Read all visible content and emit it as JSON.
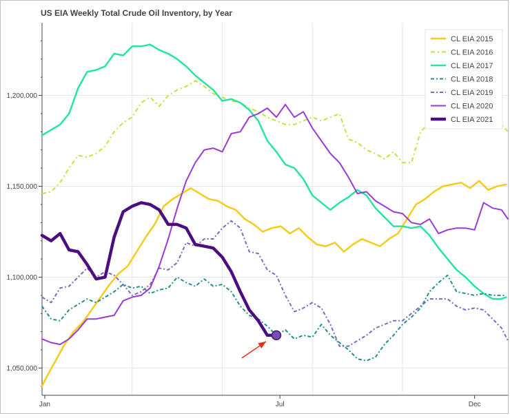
{
  "chart_data": {
    "type": "line",
    "title": "US EIA Weekly Total Crude Oil Inventory, by Year",
    "xlabel": "",
    "ylabel": "",
    "x_domain": [
      1,
      52.7
    ],
    "ylim": [
      1035000,
      1240000
    ],
    "y_ticks": [
      1050000,
      1100000,
      1150000,
      1200000
    ],
    "y_tick_labels": [
      "1,050,000",
      "1,100,000",
      "1,150,000",
      "1,200,000"
    ],
    "x_ticks": [
      1.3,
      27.4,
      49.0
    ],
    "x_tick_labels": [
      "Jan",
      "Jul",
      "Dec"
    ],
    "x_gridlines": [
      11,
      21,
      31,
      41
    ],
    "grid": true,
    "legend_position": "top-right",
    "annotation": {
      "type": "arrow",
      "target_series": "CL EIA 2021",
      "week": 27,
      "value": 1068000,
      "color": "#e62e1e"
    },
    "series": [
      {
        "name": "CL EIA 2015",
        "color": "#f5cc1b",
        "dash": "solid",
        "width": 2.5,
        "x": [
          1,
          1.5,
          2.5,
          3.5,
          4.5,
          5.5,
          6.5,
          7.5,
          8.5,
          9.5,
          10.5,
          11.5,
          12.5,
          13.5,
          14.5,
          15.5,
          16.5,
          17.5,
          18.5,
          19.5,
          20.5,
          21.5,
          22.5,
          23.5,
          24.5,
          25.5,
          26.5,
          27.5,
          28.5,
          29.5,
          30.5,
          31.5,
          32.5,
          33.5,
          34.5,
          35.5,
          36.5,
          37.5,
          38.5,
          39.5,
          40.5,
          41.5,
          42.5,
          43.5,
          44.5,
          45.5,
          46.5,
          47.5,
          48.5,
          49.5,
          50.5,
          51.5,
          52.5
        ],
        "y": [
          1040000,
          1045000,
          1054000,
          1063000,
          1070000,
          1075000,
          1082000,
          1089000,
          1096000,
          1102000,
          1106000,
          1114000,
          1122000,
          1129000,
          1139000,
          1143000,
          1146000,
          1149000,
          1146000,
          1143000,
          1142000,
          1139000,
          1137000,
          1132000,
          1129000,
          1125000,
          1127000,
          1128000,
          1124000,
          1127000,
          1122000,
          1118000,
          1117000,
          1119000,
          1114000,
          1118000,
          1121000,
          1119000,
          1117000,
          1121000,
          1124000,
          1132000,
          1140000,
          1143000,
          1147000,
          1150000,
          1151000,
          1152000,
          1149000,
          1153000,
          1148000,
          1150000,
          1151000
        ]
      },
      {
        "name": "CL EIA 2016",
        "color": "#b8e83c",
        "dash": "6,4,2,4",
        "width": 2,
        "x": [
          1,
          2,
          3,
          4,
          5,
          6,
          7,
          8,
          9,
          10,
          11,
          12,
          13,
          14,
          15,
          16,
          17,
          18,
          19,
          20,
          21,
          22,
          23,
          24,
          25,
          26,
          27,
          28,
          29,
          30,
          31,
          32,
          33,
          34,
          35,
          36,
          37,
          38,
          39,
          40,
          41,
          42,
          43,
          44,
          45,
          46,
          47,
          48,
          49,
          50,
          51,
          52,
          52.7
        ],
        "y": [
          1146000,
          1147000,
          1152000,
          1160000,
          1167000,
          1166000,
          1168000,
          1172000,
          1180000,
          1185000,
          1188000,
          1196000,
          1199000,
          1194000,
          1200000,
          1203000,
          1205000,
          1208000,
          1205000,
          1201000,
          1199000,
          1197000,
          1196000,
          1193000,
          1191000,
          1188000,
          1186000,
          1184000,
          1184000,
          1186000,
          1188000,
          1186000,
          1188000,
          1190000,
          1176000,
          1174000,
          1170000,
          1168000,
          1165000,
          1169000,
          1163000,
          1163000,
          1180000,
          1185000,
          1190000,
          1188000,
          1186000,
          1184000,
          1186000,
          1188000,
          1183000,
          1184000,
          1180000
        ]
      },
      {
        "name": "CL EIA 2017",
        "color": "#25e59f",
        "dash": "solid",
        "width": 2.5,
        "x": [
          1,
          2,
          3,
          4,
          5,
          6,
          7,
          8,
          9,
          10,
          11,
          12,
          13,
          14,
          15,
          16,
          17,
          18,
          19,
          20,
          21,
          22,
          23,
          24,
          25,
          26,
          27,
          28,
          29,
          30,
          31,
          32,
          33,
          34,
          35,
          36,
          37,
          38,
          39,
          40,
          41,
          42,
          43,
          44,
          45,
          46,
          47,
          48,
          49,
          50,
          51,
          52,
          52.5
        ],
        "y": [
          1178000,
          1181000,
          1184000,
          1190000,
          1204000,
          1213000,
          1214000,
          1216000,
          1223000,
          1222000,
          1227000,
          1227000,
          1228000,
          1225000,
          1223000,
          1220000,
          1216000,
          1211000,
          1207000,
          1203000,
          1197000,
          1198000,
          1196000,
          1192000,
          1186000,
          1175000,
          1169000,
          1162000,
          1160000,
          1154000,
          1145000,
          1141000,
          1137000,
          1141000,
          1144000,
          1148000,
          1145000,
          1138000,
          1133000,
          1128000,
          1128000,
          1127000,
          1128000,
          1123000,
          1116000,
          1110000,
          1104000,
          1100000,
          1095000,
          1091000,
          1088000,
          1088000,
          1089000
        ]
      },
      {
        "name": "CL EIA 2018",
        "color": "#1f8e8c",
        "dash": "5,3,2,3",
        "width": 2,
        "x": [
          1,
          2,
          3,
          4,
          5,
          6,
          7,
          8,
          9,
          10,
          11,
          12,
          13,
          14,
          15,
          16,
          17,
          18,
          19,
          20,
          21,
          22,
          23,
          24,
          25,
          26,
          27,
          28,
          29,
          30,
          31,
          32,
          33,
          34,
          35,
          36,
          37,
          38,
          39,
          40,
          41,
          42,
          43,
          44,
          45,
          46,
          47,
          48,
          49,
          50,
          51,
          52,
          52.5
        ],
        "y": [
          1084000,
          1077000,
          1076000,
          1082000,
          1085000,
          1088000,
          1086000,
          1089000,
          1092000,
          1096000,
          1094000,
          1095000,
          1091000,
          1093000,
          1094000,
          1100000,
          1097000,
          1095000,
          1099000,
          1095000,
          1096000,
          1092000,
          1084000,
          1079000,
          1077000,
          1073000,
          1068000,
          1071000,
          1066000,
          1068000,
          1067000,
          1074000,
          1068000,
          1064000,
          1060000,
          1055000,
          1054000,
          1056000,
          1063000,
          1068000,
          1074000,
          1078000,
          1083000,
          1092000,
          1097000,
          1101000,
          1092000,
          1091000,
          1090000,
          1091000,
          1090000,
          1090000,
          1090000
        ]
      },
      {
        "name": "CL EIA 2019",
        "color": "#7a68c3",
        "dash": "5,3,2,3",
        "width": 2,
        "x": [
          1,
          2,
          3,
          4,
          5,
          6,
          7,
          8,
          9,
          10,
          11,
          12,
          13,
          14,
          15,
          16,
          17,
          18,
          19,
          20,
          21,
          22,
          23,
          24,
          25,
          26,
          27,
          28,
          29,
          30,
          31,
          32,
          33,
          34,
          35,
          36,
          37,
          38,
          39,
          40,
          41,
          42,
          43,
          44,
          45,
          46,
          47,
          48,
          49,
          50,
          51,
          52,
          52.7
        ],
        "y": [
          1089000,
          1086000,
          1094000,
          1095000,
          1100000,
          1105000,
          1100000,
          1103000,
          1101000,
          1096000,
          1090000,
          1092000,
          1096000,
          1105000,
          1104000,
          1108000,
          1119000,
          1117000,
          1121000,
          1121000,
          1127000,
          1131000,
          1127000,
          1114000,
          1113000,
          1104000,
          1101000,
          1090000,
          1081000,
          1083000,
          1086000,
          1083000,
          1074000,
          1062000,
          1062000,
          1065000,
          1068000,
          1072000,
          1074000,
          1076000,
          1076000,
          1080000,
          1084000,
          1088000,
          1088000,
          1088000,
          1084000,
          1082000,
          1083000,
          1082000,
          1077000,
          1072000,
          1065000
        ]
      },
      {
        "name": "CL EIA 2020",
        "color": "#9a39d6",
        "dash": "solid",
        "width": 2,
        "x": [
          1,
          2,
          3,
          4,
          5,
          6,
          7,
          8,
          9,
          10,
          11,
          12,
          13,
          14,
          15,
          16,
          17,
          18,
          19,
          20,
          21,
          22,
          23,
          24,
          25,
          26,
          27,
          28,
          29,
          30,
          31,
          32,
          33,
          34,
          35,
          36,
          37,
          38,
          39,
          40,
          41,
          42,
          43,
          44,
          45,
          46,
          47,
          48,
          49,
          50,
          51,
          52,
          52.7
        ],
        "y": [
          1066000,
          1064000,
          1063000,
          1066000,
          1071000,
          1077000,
          1077000,
          1078000,
          1079000,
          1087000,
          1089000,
          1090000,
          1094000,
          1106000,
          1121000,
          1138000,
          1153000,
          1163000,
          1170000,
          1171000,
          1169000,
          1179000,
          1180000,
          1188000,
          1190000,
          1193000,
          1188000,
          1195000,
          1188000,
          1191000,
          1182000,
          1175000,
          1168000,
          1163000,
          1155000,
          1146000,
          1147000,
          1142000,
          1139000,
          1136000,
          1135000,
          1130000,
          1129000,
          1132000,
          1124000,
          1126000,
          1127000,
          1127000,
          1126000,
          1141000,
          1138000,
          1137000,
          1132000
        ]
      },
      {
        "name": "CL EIA 2021",
        "color": "#4a0e7f",
        "dash": "solid",
        "width": 4.5,
        "x": [
          1,
          2,
          3,
          4,
          5,
          6,
          7,
          8,
          9,
          10,
          11,
          12,
          13,
          14,
          15,
          16,
          17,
          18,
          19,
          20,
          21,
          22,
          23,
          24,
          25,
          26,
          27
        ],
        "y": [
          1123000,
          1120000,
          1124000,
          1115000,
          1114000,
          1107000,
          1099000,
          1100000,
          1122000,
          1136000,
          1139000,
          1141000,
          1140000,
          1137000,
          1129000,
          1129000,
          1127000,
          1118000,
          1117000,
          1116000,
          1111000,
          1103000,
          1092000,
          1082000,
          1076000,
          1068000,
          1068000
        ]
      }
    ]
  }
}
